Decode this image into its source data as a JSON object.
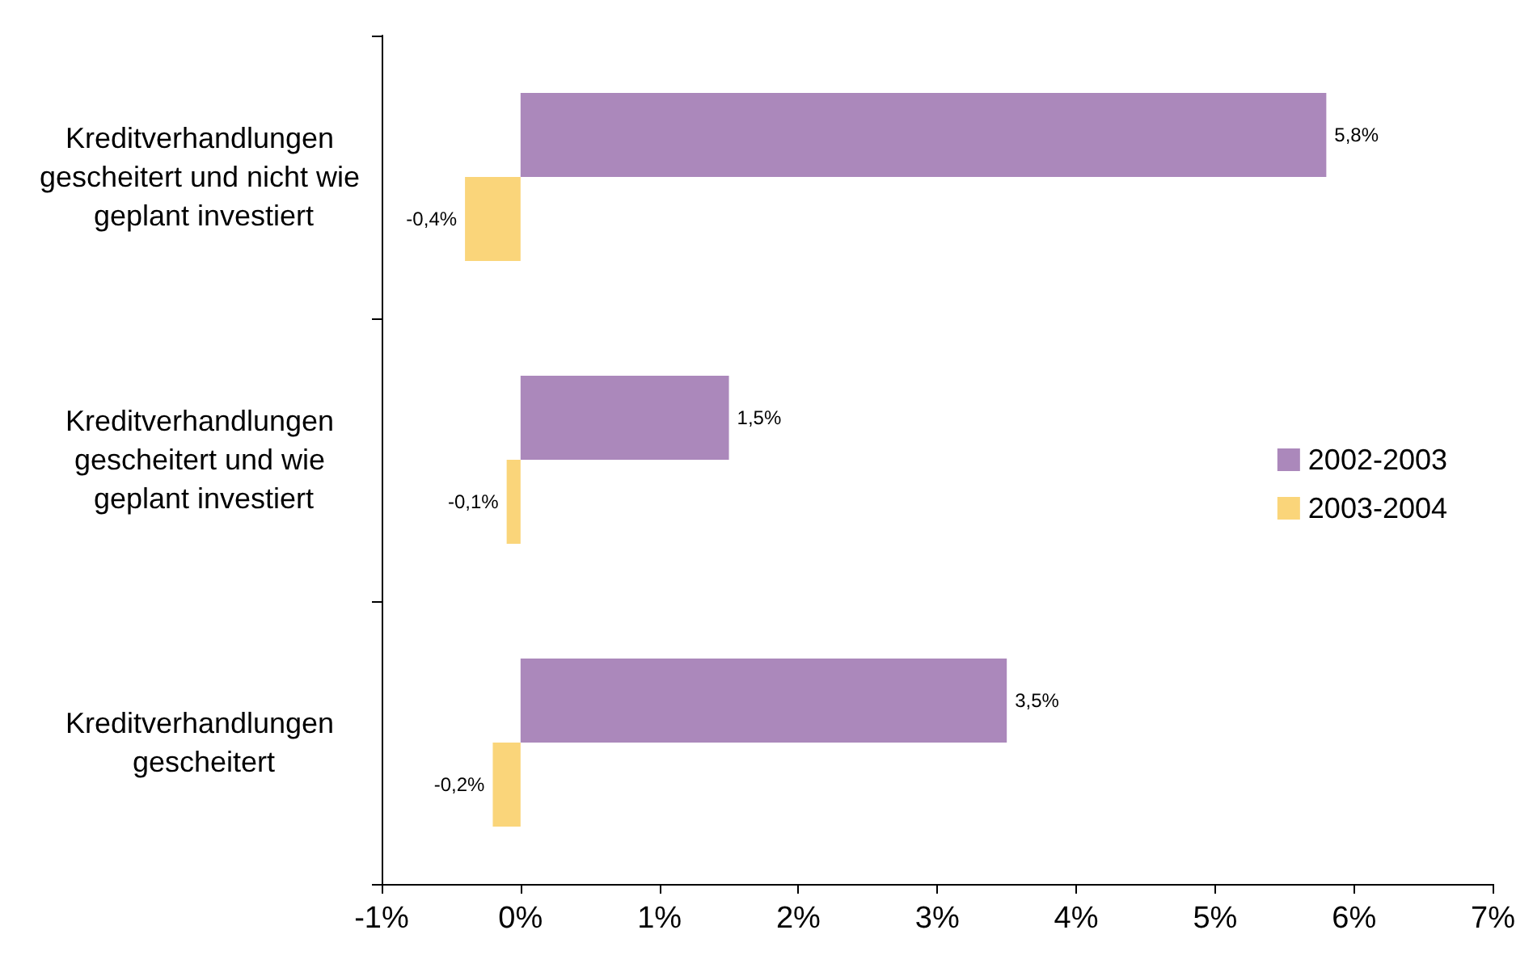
{
  "chart_data": {
    "type": "bar",
    "orientation": "horizontal",
    "categories": [
      "Kreditverhandlungen gescheitert und nicht wie geplant investiert",
      "Kreditverhandlungen gescheitert und wie geplant investiert",
      "Kreditverhandlungen gescheitert"
    ],
    "series": [
      {
        "name": "2002-2003",
        "color": "#ab88bb",
        "values": [
          5.8,
          1.5,
          3.5
        ],
        "value_labels": [
          "5,8%",
          "1,5%",
          "3,5%"
        ]
      },
      {
        "name": "2003-2004",
        "color": "#fad57a",
        "values": [
          -0.4,
          -0.1,
          -0.2
        ],
        "value_labels": [
          "-0,4%",
          "-0,1%",
          "-0,2%"
        ]
      }
    ],
    "xlim": [
      -1,
      7
    ],
    "xticks": [
      {
        "value": -1,
        "label": "-1%"
      },
      {
        "value": 0,
        "label": "0%"
      },
      {
        "value": 1,
        "label": "1%"
      },
      {
        "value": 2,
        "label": "2%"
      },
      {
        "value": 3,
        "label": "3%"
      },
      {
        "value": 4,
        "label": "4%"
      },
      {
        "value": 5,
        "label": "5%"
      },
      {
        "value": 6,
        "label": "6%"
      },
      {
        "value": 7,
        "label": "7%"
      }
    ],
    "grid": false,
    "legend": "right"
  }
}
